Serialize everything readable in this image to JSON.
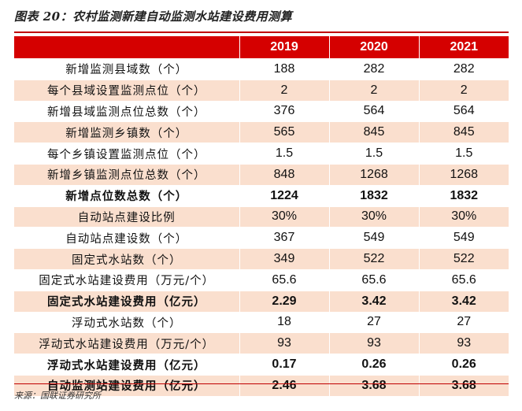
{
  "title": "图表 20：农村监测新建自动监测水站建设费用测算",
  "table": {
    "headers": [
      "",
      "2019",
      "2020",
      "2021"
    ],
    "rows": [
      {
        "label": "新增监测县域数（个）",
        "values": [
          "188",
          "282",
          "282"
        ],
        "bold": false
      },
      {
        "label": "每个县域设置监测点位（个）",
        "values": [
          "2",
          "2",
          "2"
        ],
        "bold": false
      },
      {
        "label": "新增县域监测点位总数（个）",
        "values": [
          "376",
          "564",
          "564"
        ],
        "bold": false
      },
      {
        "label": "新增监测乡镇数（个）",
        "values": [
          "565",
          "845",
          "845"
        ],
        "bold": false
      },
      {
        "label": "每个乡镇设置监测点位（个）",
        "values": [
          "1.5",
          "1.5",
          "1.5"
        ],
        "bold": false
      },
      {
        "label": "新增乡镇监测点位总数（个）",
        "values": [
          "848",
          "1268",
          "1268"
        ],
        "bold": false
      },
      {
        "label": "新增点位数总数（个）",
        "values": [
          "1224",
          "1832",
          "1832"
        ],
        "bold": true
      },
      {
        "label": "自动站点建设比例",
        "values": [
          "30%",
          "30%",
          "30%"
        ],
        "bold": false
      },
      {
        "label": "自动站点建设数（个）",
        "values": [
          "367",
          "549",
          "549"
        ],
        "bold": false
      },
      {
        "label": "固定式水站数（个）",
        "values": [
          "349",
          "522",
          "522"
        ],
        "bold": false
      },
      {
        "label": "固定式水站建设费用（万元/个）",
        "values": [
          "65.6",
          "65.6",
          "65.6"
        ],
        "bold": false
      },
      {
        "label": "固定式水站建设费用（亿元）",
        "values": [
          "2.29",
          "3.42",
          "3.42"
        ],
        "bold": true
      },
      {
        "label": "浮动式水站数（个）",
        "values": [
          "18",
          "27",
          "27"
        ],
        "bold": false
      },
      {
        "label": "浮动式水站建设费用（万元/个）",
        "values": [
          "93",
          "93",
          "93"
        ],
        "bold": false
      },
      {
        "label": "浮动式水站建设费用（亿元）",
        "values": [
          "0.17",
          "0.26",
          "0.26"
        ],
        "bold": true
      },
      {
        "label": "自动监测站建设费用（亿元）",
        "values": [
          "2.46",
          "3.68",
          "3.68"
        ],
        "bold": true
      }
    ]
  },
  "source": "来源：国联证券研究所",
  "colors": {
    "accent": "#d50000",
    "stripe": "#fadfce"
  }
}
